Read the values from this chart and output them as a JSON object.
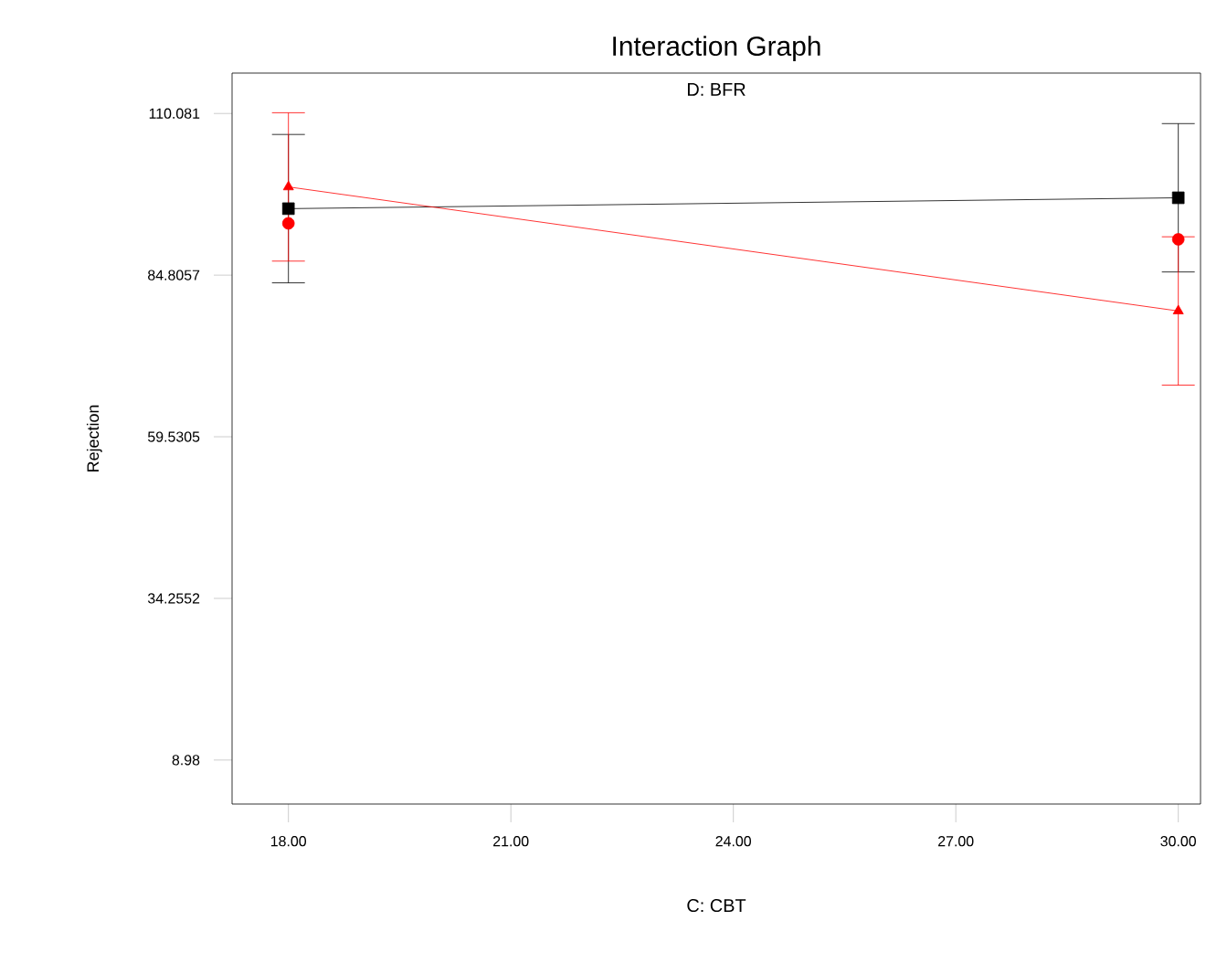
{
  "chart_data": {
    "type": "line",
    "title": "Interaction Graph",
    "subtitle": "D: BFR",
    "xlabel": "C: CBT",
    "ylabel": "Rejection",
    "x": [
      18,
      30
    ],
    "series": [
      {
        "color": "#000000",
        "values": [
          95.2,
          96.9
        ],
        "errors": [
          11.6,
          11.6
        ],
        "marker": "square"
      },
      {
        "color": "#ff0000",
        "values": [
          98.6,
          79.2
        ],
        "errors": [
          11.6,
          11.6
        ],
        "marker": "triangle"
      },
      {
        "type": "scatter",
        "color": "#ff0000",
        "values": [
          92.9,
          90.4
        ],
        "marker": "circle"
      }
    ],
    "xlim": [
      17.24,
      30.3
    ],
    "ylim": [
      2.1,
      116.4
    ],
    "xticks": [
      {
        "value": 18,
        "label": "18.00"
      },
      {
        "value": 21,
        "label": "21.00"
      },
      {
        "value": 24,
        "label": "24.00"
      },
      {
        "value": 27,
        "label": "27.00"
      },
      {
        "value": 30,
        "label": "30.00"
      }
    ],
    "yticks": [
      8.98,
      34.2552,
      59.5305,
      84.8057,
      110.081
    ],
    "grid": false,
    "legend": false
  }
}
